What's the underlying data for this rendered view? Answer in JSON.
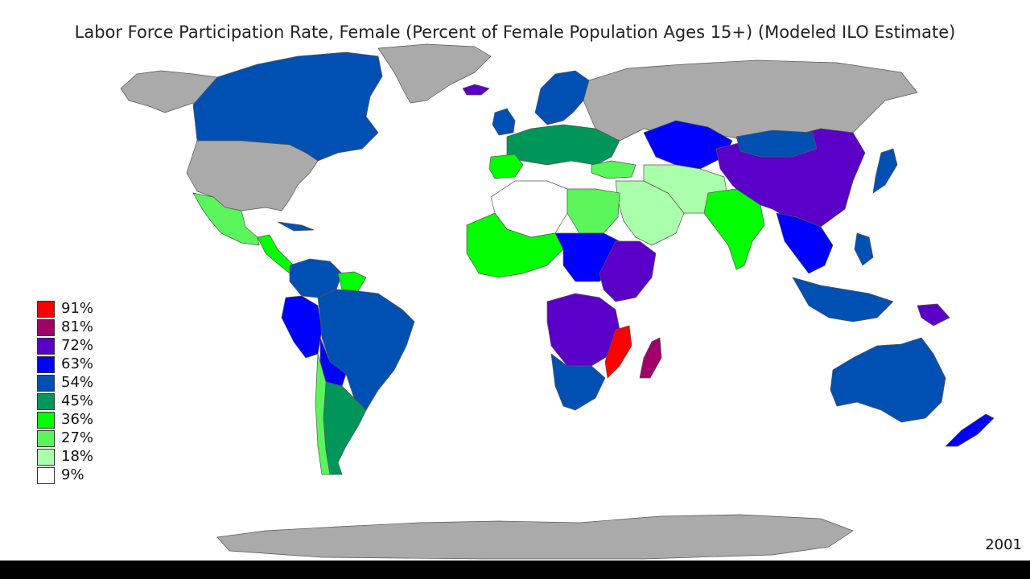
{
  "title": "Labor Force Participation Rate, Female (Percent of Female Population Ages 15+) (Modeled ILO Estimate)",
  "year": "2001",
  "legend": [
    {
      "label": "91%",
      "color": "#ff0000"
    },
    {
      "label": "81%",
      "color": "#a0006a"
    },
    {
      "label": "72%",
      "color": "#5a00c8"
    },
    {
      "label": "63%",
      "color": "#0000ff"
    },
    {
      "label": "54%",
      "color": "#0050b4"
    },
    {
      "label": "45%",
      "color": "#00965a"
    },
    {
      "label": "36%",
      "color": "#00ff00"
    },
    {
      "label": "27%",
      "color": "#5af55a"
    },
    {
      "label": "18%",
      "color": "#aaffaa"
    },
    {
      "label": "9%",
      "color": "#ffffff"
    }
  ],
  "no_data_color": "#aaaaaa"
}
